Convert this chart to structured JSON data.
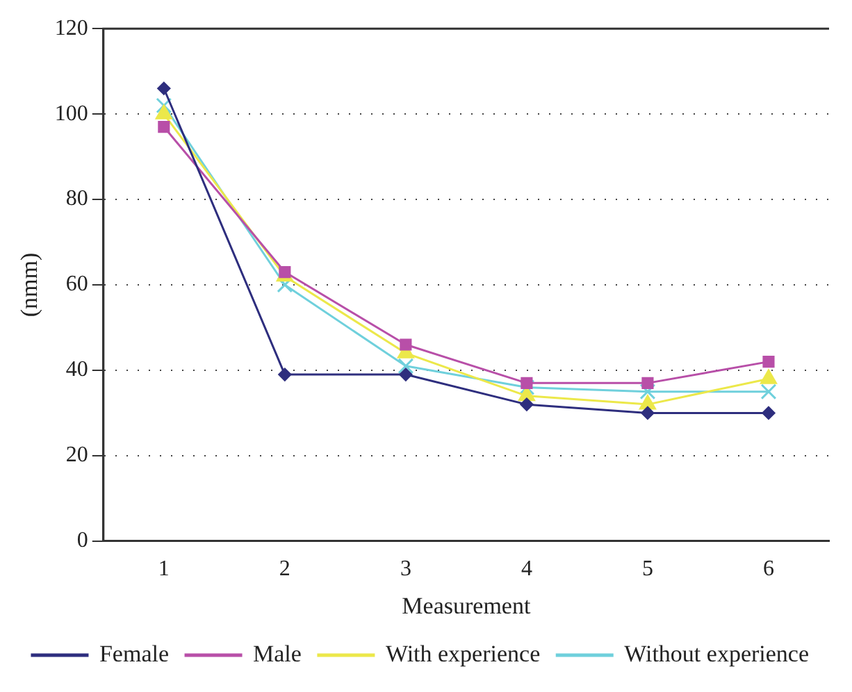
{
  "chart_data": {
    "type": "line",
    "xlabel": "Measurement",
    "ylabel": "(nmm)",
    "categories": [
      "1",
      "2",
      "3",
      "4",
      "5",
      "6"
    ],
    "series": [
      {
        "name": "Female",
        "color": "#2e2e7e",
        "marker": "diamond",
        "values": [
          106,
          39,
          39,
          32,
          30,
          30
        ]
      },
      {
        "name": "Male",
        "color": "#b84fa8",
        "marker": "square",
        "values": [
          97,
          63,
          46,
          37,
          37,
          42
        ]
      },
      {
        "name": "With experience",
        "color": "#ece84a",
        "marker": "triangle",
        "values": [
          100,
          62,
          44,
          34,
          32,
          38
        ]
      },
      {
        "name": "Without experience",
        "color": "#6fd0dc",
        "marker": "cross",
        "values": [
          102,
          60,
          41,
          36,
          35,
          35
        ]
      }
    ],
    "ylim": [
      0,
      120
    ],
    "yticks": [
      0,
      20,
      40,
      60,
      80,
      100,
      120
    ],
    "grid": "y",
    "line_style": "solid",
    "legend": "bottom"
  }
}
